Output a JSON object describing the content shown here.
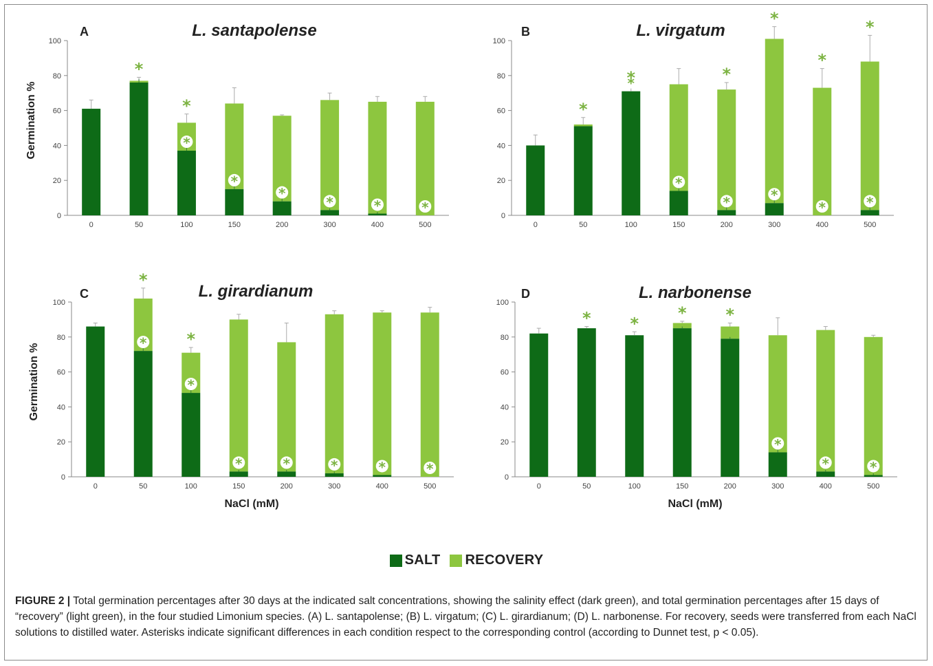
{
  "colors": {
    "salt": "#0e6b17",
    "recovery": "#8dc63f",
    "asterisk": "#7cb342",
    "axis": "#888888"
  },
  "legend": {
    "salt": "SALT",
    "recovery": "RECOVERY"
  },
  "caption": {
    "label": "FIGURE 2 |",
    "text": " Total germination percentages after 30 days at the indicated salt concentrations, showing the salinity effect (dark green), and total germination percentages after 15 days of “recovery” (light green), in the four studied Limonium species. (A) L. santapolense; (B) L. virgatum; (C) L. girardianum; (D) L. narbonense. For recovery, seeds were transferred from each NaCl solutions to distilled water. Asterisks indicate significant differences in each condition respect to the corresponding control (according to Dunnet test, p < 0.05)."
  },
  "chart_data": [
    {
      "type": "bar",
      "stacked": true,
      "panel": "A",
      "title": "L. santapolense",
      "ylabel": "Germination %",
      "xlabel": "",
      "ylim": [
        0,
        100
      ],
      "yticks": [
        "0",
        "20",
        "40",
        "60",
        "80",
        "100"
      ],
      "categories": [
        "0",
        "50",
        "100",
        "150",
        "200",
        "300",
        "400",
        "500"
      ],
      "salt": [
        61,
        76,
        37,
        15,
        8,
        3,
        1,
        0
      ],
      "salt_err": [
        0,
        2,
        4,
        5,
        4,
        1,
        1,
        0
      ],
      "recovery_total": [
        61,
        77,
        53,
        64,
        57,
        66,
        65,
        65
      ],
      "recovery_err": [
        5,
        2,
        5,
        9,
        0.5,
        4,
        3,
        3
      ],
      "star_top": [
        false,
        true,
        true,
        false,
        false,
        false,
        false,
        false
      ],
      "star_inner": [
        false,
        false,
        true,
        true,
        true,
        true,
        true,
        true
      ]
    },
    {
      "type": "bar",
      "stacked": true,
      "panel": "B",
      "title": "L. virgatum",
      "ylabel": "",
      "xlabel": "",
      "ylim": [
        0,
        100
      ],
      "yticks": [
        "0",
        "20",
        "40",
        "60",
        "80",
        "100"
      ],
      "categories": [
        "0",
        "50",
        "100",
        "150",
        "200",
        "300",
        "400",
        "500"
      ],
      "salt": [
        40,
        51,
        71,
        14,
        3,
        7,
        0,
        3
      ],
      "salt_err": [
        0,
        0,
        0,
        3,
        2,
        3,
        0,
        2
      ],
      "recovery_total": [
        40,
        52,
        71,
        75,
        72,
        101,
        73,
        88
      ],
      "recovery_err": [
        6,
        4,
        3,
        9,
        4,
        7,
        11,
        15
      ],
      "star_top": [
        false,
        true,
        true,
        false,
        true,
        true,
        true,
        true
      ],
      "star_inner": [
        false,
        false,
        true,
        true,
        true,
        true,
        true,
        true
      ]
    },
    {
      "type": "bar",
      "stacked": true,
      "panel": "C",
      "title": "L. girardianum",
      "ylabel": "Germination %",
      "xlabel": "NaCl (mM)",
      "ylim": [
        0,
        100
      ],
      "yticks": [
        "0",
        "20",
        "40",
        "60",
        "80",
        "100"
      ],
      "categories": [
        "0",
        "50",
        "100",
        "150",
        "200",
        "300",
        "400",
        "500"
      ],
      "salt": [
        86,
        72,
        48,
        3,
        3,
        2,
        1,
        0
      ],
      "salt_err": [
        0,
        3,
        6,
        1,
        1,
        1,
        0,
        0
      ],
      "recovery_total": [
        86,
        102,
        71,
        90,
        77,
        93,
        94,
        94
      ],
      "recovery_err": [
        2,
        6,
        3,
        3,
        11,
        2,
        1,
        3
      ],
      "star_top": [
        false,
        true,
        true,
        false,
        false,
        false,
        false,
        false
      ],
      "star_inner": [
        false,
        true,
        true,
        true,
        true,
        true,
        true,
        true
      ]
    },
    {
      "type": "bar",
      "stacked": true,
      "panel": "D",
      "title": "L. narbonense",
      "ylabel": "",
      "xlabel": "NaCl (mM)",
      "ylim": [
        0,
        100
      ],
      "yticks": [
        "0",
        "20",
        "40",
        "60",
        "80",
        "100"
      ],
      "categories": [
        "0",
        "50",
        "100",
        "150",
        "200",
        "300",
        "400",
        "500"
      ],
      "salt": [
        82,
        85,
        81,
        85,
        79,
        14,
        3,
        1
      ],
      "salt_err": [
        0,
        0,
        0,
        1,
        1,
        6,
        1,
        1
      ],
      "recovery_total": [
        82,
        85,
        81,
        88,
        86,
        81,
        84,
        80
      ],
      "recovery_err": [
        3,
        1,
        2,
        1,
        2,
        10,
        2,
        1
      ],
      "star_top": [
        false,
        true,
        true,
        true,
        true,
        false,
        false,
        false
      ],
      "star_inner": [
        false,
        false,
        false,
        false,
        false,
        true,
        true,
        true
      ]
    }
  ]
}
